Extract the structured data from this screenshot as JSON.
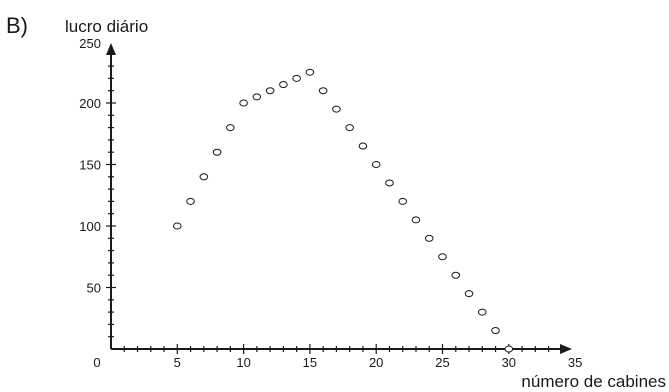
{
  "panel_label": "B)",
  "chart_data": {
    "type": "scatter",
    "title": "",
    "xlabel": "número de cabines",
    "ylabel": "lucro diário",
    "xlim": [
      0,
      35
    ],
    "ylim": [
      0,
      250
    ],
    "origin_label": "0",
    "x_ticks": [
      "5",
      "10",
      "15",
      "20",
      "25",
      "30",
      "35"
    ],
    "y_ticks": [
      "50",
      "100",
      "150",
      "200",
      "250"
    ],
    "grid": false,
    "legend": "none",
    "marker": "open-circle",
    "series": [
      {
        "x": [
          5,
          6,
          7,
          8,
          9,
          10,
          11,
          12,
          13,
          14,
          15,
          16,
          17,
          18,
          19,
          20,
          21,
          22,
          23,
          24,
          25,
          26,
          27,
          28,
          29,
          30
        ],
        "values": [
          100,
          120,
          140,
          160,
          180,
          200,
          205,
          210,
          215,
          220,
          225,
          210,
          195,
          180,
          165,
          150,
          135,
          120,
          105,
          90,
          75,
          60,
          45,
          30,
          15,
          0
        ]
      }
    ]
  }
}
